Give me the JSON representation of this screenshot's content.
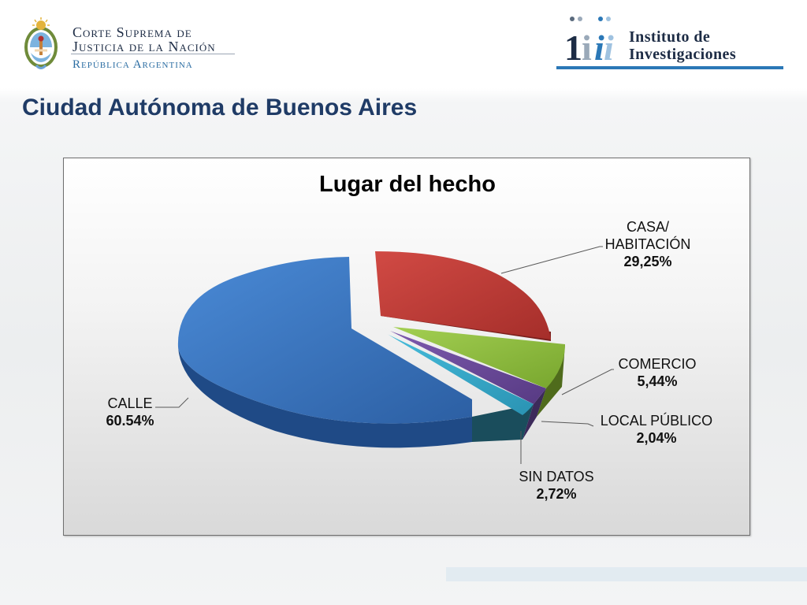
{
  "header": {
    "court_line1": "Corte Suprema de",
    "court_line2": "Justicia de la Nación",
    "court_line3": "República Argentina",
    "institute_line1": "Instituto de",
    "institute_line2": "Investigaciones"
  },
  "page_title": "Ciudad Autónoma de Buenos Aires",
  "chart_data": {
    "type": "pie",
    "title": "Lugar del hecho",
    "slices": [
      {
        "label": "CALLE",
        "value": 60.54,
        "value_label": "60.54%",
        "color": "#3a76c0"
      },
      {
        "label": "CASA/ HABITACIÓN",
        "label_line1": "CASA/",
        "label_line2": "HABITACIÓN",
        "value": 29.25,
        "value_label": "29,25%",
        "color": "#c43a36"
      },
      {
        "label": "COMERCIO",
        "value": 5.44,
        "value_label": "5,44%",
        "color": "#8dbb3c"
      },
      {
        "label": "LOCAL PÚBLICO",
        "value": 2.04,
        "value_label": "2,04%",
        "color": "#6a4797"
      },
      {
        "label": "SIN DATOS",
        "value": 2.72,
        "value_label": "2,72%",
        "color": "#35a9c9"
      }
    ]
  }
}
